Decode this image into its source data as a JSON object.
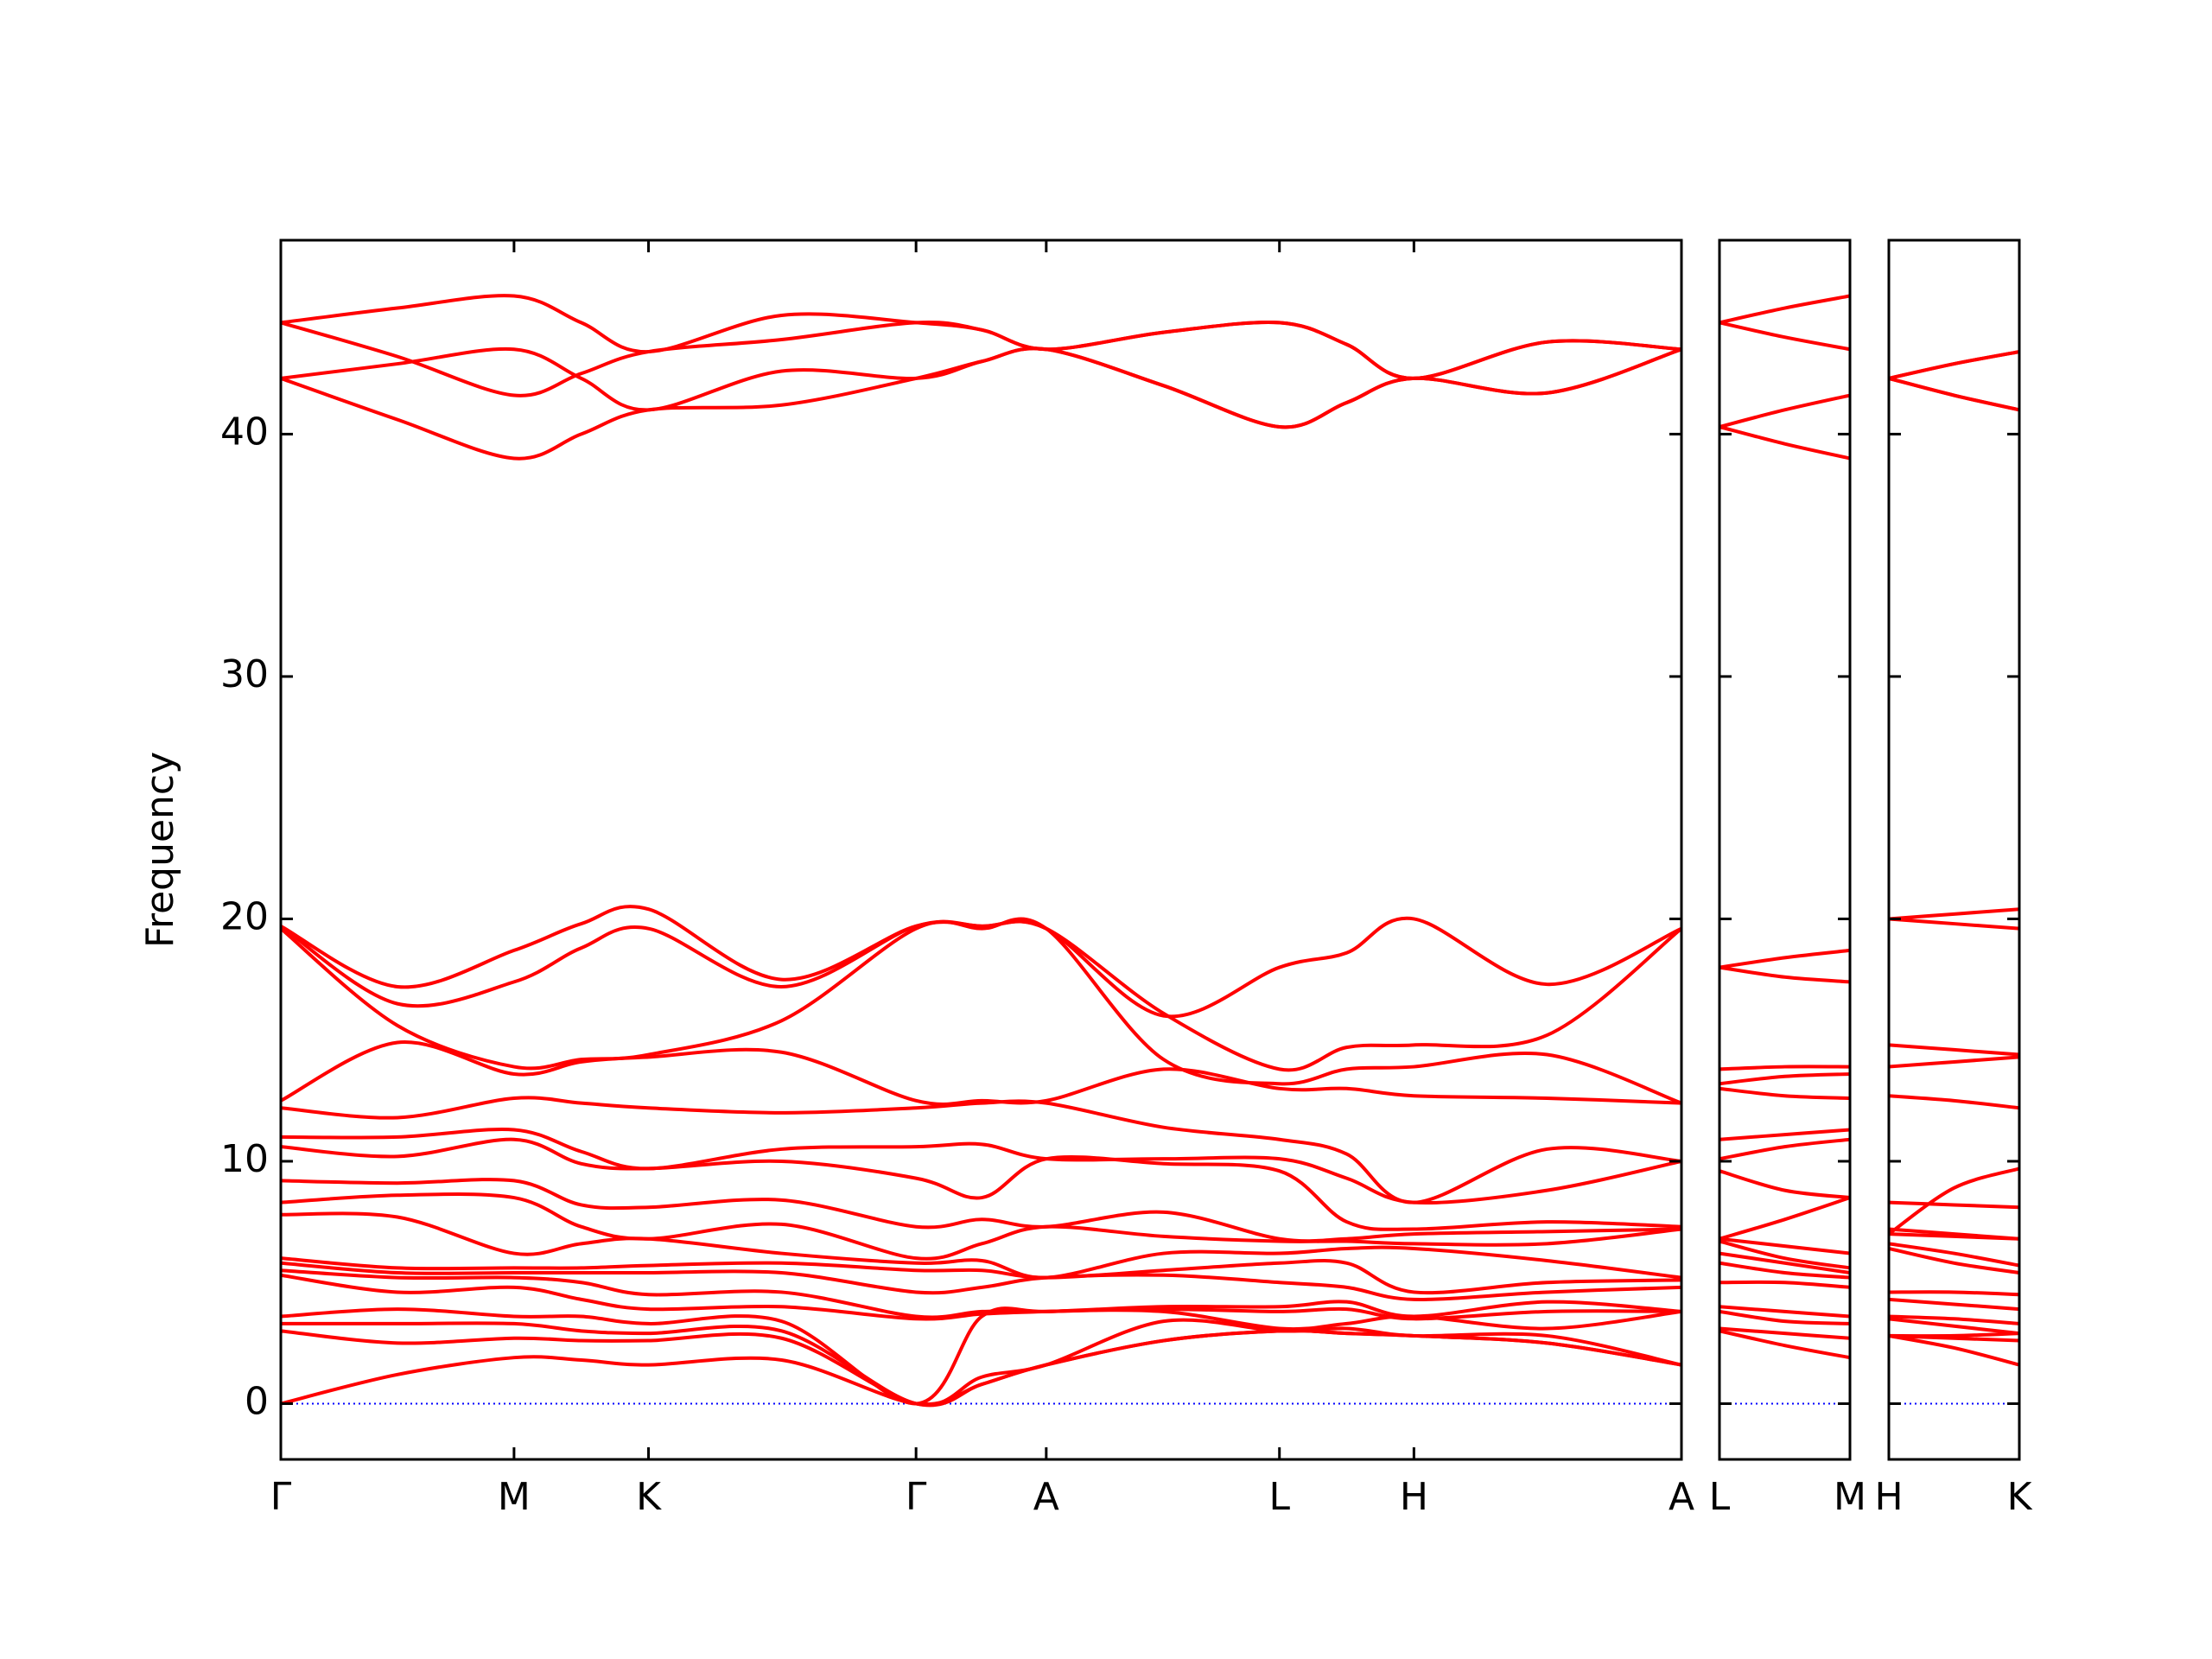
{
  "chart_data": [
    {
      "type": "line",
      "ylabel": "Frequency",
      "color": "#ff0000",
      "show_ytick_labels": true,
      "xlim": [
        0,
        9.79
      ],
      "ylim": [
        -2.3,
        48
      ],
      "yticks": [
        0,
        10,
        20,
        30,
        40
      ],
      "hline": 0,
      "hline_color": "#0000ff",
      "xticks": [
        {
          "value": 0,
          "label": "Γ"
        },
        {
          "value": 1.63,
          "label": "M"
        },
        {
          "value": 2.57,
          "label": "K"
        },
        {
          "value": 4.44,
          "label": "Γ"
        },
        {
          "value": 5.35,
          "label": "A"
        },
        {
          "value": 6.98,
          "label": "L"
        },
        {
          "value": 7.92,
          "label": "H"
        },
        {
          "value": 9.79,
          "label": "A"
        }
      ],
      "x": [
        0,
        0.815,
        1.63,
        2.1,
        2.57,
        3.5,
        4.44,
        4.9,
        5.35,
        6.17,
        6.98,
        7.45,
        7.92,
        8.85,
        9.79
      ],
      "series": [
        {
          "values": [
            44.6,
            45.2,
            45.7,
            44.6,
            43.4,
            44.9,
            44.6,
            44.3,
            43.5,
            44.2,
            44.6,
            43.7,
            42.3,
            43.8,
            43.5
          ]
        },
        {
          "values": [
            44.6,
            43.2,
            41.6,
            42.5,
            43.4,
            43.9,
            44.6,
            44.3,
            43.5,
            44.2,
            44.6,
            43.7,
            42.3,
            43.8,
            43.5
          ]
        },
        {
          "values": [
            42.3,
            42.9,
            43.5,
            42.3,
            41.0,
            42.6,
            42.3,
            43.0,
            43.5,
            42.0,
            40.3,
            41.3,
            42.3,
            41.7,
            43.5
          ]
        },
        {
          "values": [
            42.3,
            40.6,
            39.0,
            40.0,
            41.0,
            41.2,
            42.3,
            43.0,
            43.5,
            42.0,
            40.3,
            41.3,
            42.3,
            41.7,
            43.5
          ]
        },
        {
          "values": [
            19.7,
            17.2,
            18.7,
            19.8,
            20.4,
            17.5,
            19.7,
            19.7,
            19.6,
            16.0,
            18.0,
            18.6,
            20.0,
            17.3,
            19.6
          ]
        },
        {
          "values": [
            19.7,
            16.5,
            17.4,
            18.8,
            19.6,
            17.2,
            19.7,
            19.7,
            19.6,
            16.1,
            13.8,
            14.7,
            14.8,
            15.2,
            19.6
          ]
        },
        {
          "values": [
            19.6,
            15.6,
            13.9,
            14.2,
            14.4,
            15.8,
            19.6,
            19.6,
            19.6,
            14.2,
            13.2,
            13.8,
            13.9,
            14.4,
            12.4
          ]
        },
        {
          "values": [
            12.5,
            14.9,
            13.6,
            14.1,
            14.3,
            14.5,
            12.5,
            12.5,
            12.5,
            13.8,
            13.0,
            13.0,
            12.7,
            12.6,
            12.4
          ]
        },
        {
          "values": [
            12.2,
            11.8,
            12.6,
            12.4,
            12.2,
            12.0,
            12.2,
            12.4,
            12.4,
            11.4,
            10.9,
            10.3,
            8.3,
            10.5,
            10.0
          ]
        },
        {
          "values": [
            11.0,
            11.0,
            11.3,
            10.4,
            9.7,
            10.5,
            10.6,
            10.7,
            10.1,
            10.1,
            10.1,
            9.3,
            8.3,
            8.8,
            10.0
          ]
        },
        {
          "values": [
            10.6,
            10.2,
            10.9,
            9.9,
            9.7,
            10.0,
            9.3,
            8.5,
            10.1,
            9.9,
            9.6,
            7.5,
            7.2,
            7.5,
            7.3
          ]
        },
        {
          "values": [
            9.2,
            9.1,
            9.2,
            8.2,
            8.1,
            8.4,
            7.3,
            7.6,
            7.3,
            7.9,
            6.8,
            6.8,
            7.0,
            7.1,
            7.2
          ]
        },
        {
          "values": [
            8.3,
            8.6,
            8.5,
            7.3,
            6.8,
            7.4,
            6.0,
            6.6,
            7.3,
            6.9,
            6.7,
            6.7,
            6.6,
            6.6,
            7.2
          ]
        },
        {
          "values": [
            7.8,
            7.7,
            6.2,
            6.6,
            6.8,
            6.2,
            5.8,
            5.9,
            5.2,
            6.2,
            6.2,
            6.4,
            6.4,
            5.9,
            5.2
          ]
        },
        {
          "values": [
            6.0,
            5.6,
            5.6,
            5.6,
            5.7,
            5.8,
            5.5,
            5.5,
            5.2,
            5.5,
            5.8,
            5.8,
            4.6,
            5.0,
            5.1
          ]
        },
        {
          "values": [
            5.8,
            5.4,
            5.4,
            5.4,
            5.4,
            5.4,
            4.6,
            4.8,
            5.2,
            5.3,
            5.0,
            4.8,
            4.3,
            4.6,
            4.8
          ]
        },
        {
          "values": [
            5.5,
            5.2,
            5.2,
            5.0,
            4.5,
            4.6,
            3.6,
            3.8,
            3.8,
            4.0,
            4.0,
            4.2,
            3.6,
            4.2,
            3.8
          ]
        },
        {
          "values": [
            5.3,
            4.6,
            4.8,
            4.3,
            3.9,
            4.0,
            3.5,
            3.7,
            3.8,
            3.9,
            3.8,
            3.9,
            3.5,
            3.8,
            3.8
          ]
        },
        {
          "values": [
            3.6,
            3.9,
            3.6,
            3.6,
            3.3,
            3.4,
            0,
            3.6,
            3.8,
            3.8,
            3.1,
            3.3,
            3.6,
            3.1,
            3.8
          ]
        },
        {
          "values": [
            3.3,
            3.3,
            3.3,
            3.0,
            2.9,
            3.0,
            0,
            1.1,
            1.6,
            3.4,
            3.0,
            3.1,
            2.8,
            2.8,
            1.6
          ]
        },
        {
          "values": [
            3.0,
            2.5,
            2.7,
            2.6,
            2.6,
            2.7,
            0,
            0.8,
            1.6,
            2.6,
            3.0,
            2.9,
            2.8,
            2.5,
            1.6
          ]
        },
        {
          "values": [
            0,
            1.2,
            1.9,
            1.8,
            1.6,
            1.8,
            0,
            0.8,
            1.6,
            2.6,
            3.0,
            2.9,
            2.8,
            2.5,
            1.6
          ]
        }
      ]
    },
    {
      "type": "line",
      "color": "#ff0000",
      "show_ytick_labels": false,
      "xlim": [
        0,
        0.91
      ],
      "ylim": [
        -2.3,
        48
      ],
      "yticks": [
        0,
        10,
        20,
        30,
        40
      ],
      "hline": 0,
      "hline_color": "#0000ff",
      "xticks": [
        {
          "value": 0,
          "label": "L"
        },
        {
          "value": 0.91,
          "label": "M"
        }
      ],
      "x": [
        0,
        0.455,
        0.91
      ],
      "series": [
        {
          "values": [
            44.6,
            45.2,
            45.7
          ]
        },
        {
          "values": [
            44.6,
            44.0,
            43.5
          ]
        },
        {
          "values": [
            40.3,
            41.0,
            41.6
          ]
        },
        {
          "values": [
            40.3,
            39.6,
            39.0
          ]
        },
        {
          "values": [
            18.0,
            18.4,
            18.7
          ]
        },
        {
          "values": [
            18.0,
            17.6,
            17.4
          ]
        },
        {
          "values": [
            13.8,
            13.9,
            13.9
          ]
        },
        {
          "values": [
            13.2,
            13.5,
            13.6
          ]
        },
        {
          "values": [
            13.0,
            12.7,
            12.6
          ]
        },
        {
          "values": [
            10.9,
            11.1,
            11.3
          ]
        },
        {
          "values": [
            10.1,
            10.6,
            10.9
          ]
        },
        {
          "values": [
            9.6,
            8.8,
            8.5
          ]
        },
        {
          "values": [
            6.8,
            7.6,
            8.5
          ]
        },
        {
          "values": [
            6.8,
            6.5,
            6.2
          ]
        },
        {
          "values": [
            6.7,
            6.0,
            5.6
          ]
        },
        {
          "values": [
            6.2,
            5.8,
            5.4
          ]
        },
        {
          "values": [
            5.8,
            5.4,
            5.2
          ]
        },
        {
          "values": [
            5.0,
            5.0,
            4.8
          ]
        },
        {
          "values": [
            4.0,
            3.8,
            3.6
          ]
        },
        {
          "values": [
            3.8,
            3.4,
            3.3
          ]
        },
        {
          "values": [
            3.1,
            2.9,
            2.7
          ]
        },
        {
          "values": [
            3.0,
            2.4,
            1.9
          ]
        }
      ]
    },
    {
      "type": "line",
      "color": "#ff0000",
      "show_ytick_labels": false,
      "xlim": [
        0,
        0.91
      ],
      "ylim": [
        -2.3,
        48
      ],
      "yticks": [
        0,
        10,
        20,
        30,
        40
      ],
      "hline": 0,
      "hline_color": "#0000ff",
      "xticks": [
        {
          "value": 0,
          "label": "H"
        },
        {
          "value": 0.91,
          "label": "K"
        }
      ],
      "x": [
        0,
        0.455,
        0.91
      ],
      "series": [
        {
          "values": [
            42.3,
            42.9,
            43.4
          ]
        },
        {
          "values": [
            42.3,
            42.9,
            43.4
          ]
        },
        {
          "values": [
            42.3,
            41.6,
            41.0
          ]
        },
        {
          "values": [
            42.3,
            41.6,
            41.0
          ]
        },
        {
          "values": [
            20.0,
            20.2,
            20.4
          ]
        },
        {
          "values": [
            20.0,
            19.8,
            19.6
          ]
        },
        {
          "values": [
            14.8,
            14.6,
            14.4
          ]
        },
        {
          "values": [
            13.9,
            14.1,
            14.3
          ]
        },
        {
          "values": [
            12.7,
            12.5,
            12.2
          ]
        },
        {
          "values": [
            7.0,
            8.9,
            9.7
          ]
        },
        {
          "values": [
            8.3,
            8.2,
            8.1
          ]
        },
        {
          "values": [
            7.2,
            7.0,
            6.8
          ]
        },
        {
          "values": [
            7.0,
            6.9,
            6.8
          ]
        },
        {
          "values": [
            6.6,
            6.2,
            5.7
          ]
        },
        {
          "values": [
            6.4,
            5.8,
            5.4
          ]
        },
        {
          "values": [
            4.6,
            4.6,
            4.5
          ]
        },
        {
          "values": [
            4.3,
            4.1,
            3.9
          ]
        },
        {
          "values": [
            3.6,
            3.5,
            3.3
          ]
        },
        {
          "values": [
            3.5,
            3.2,
            2.9
          ]
        },
        {
          "values": [
            2.8,
            2.8,
            2.9
          ]
        },
        {
          "values": [
            2.8,
            2.7,
            2.6
          ]
        },
        {
          "values": [
            2.8,
            2.3,
            1.6
          ]
        }
      ]
    }
  ]
}
